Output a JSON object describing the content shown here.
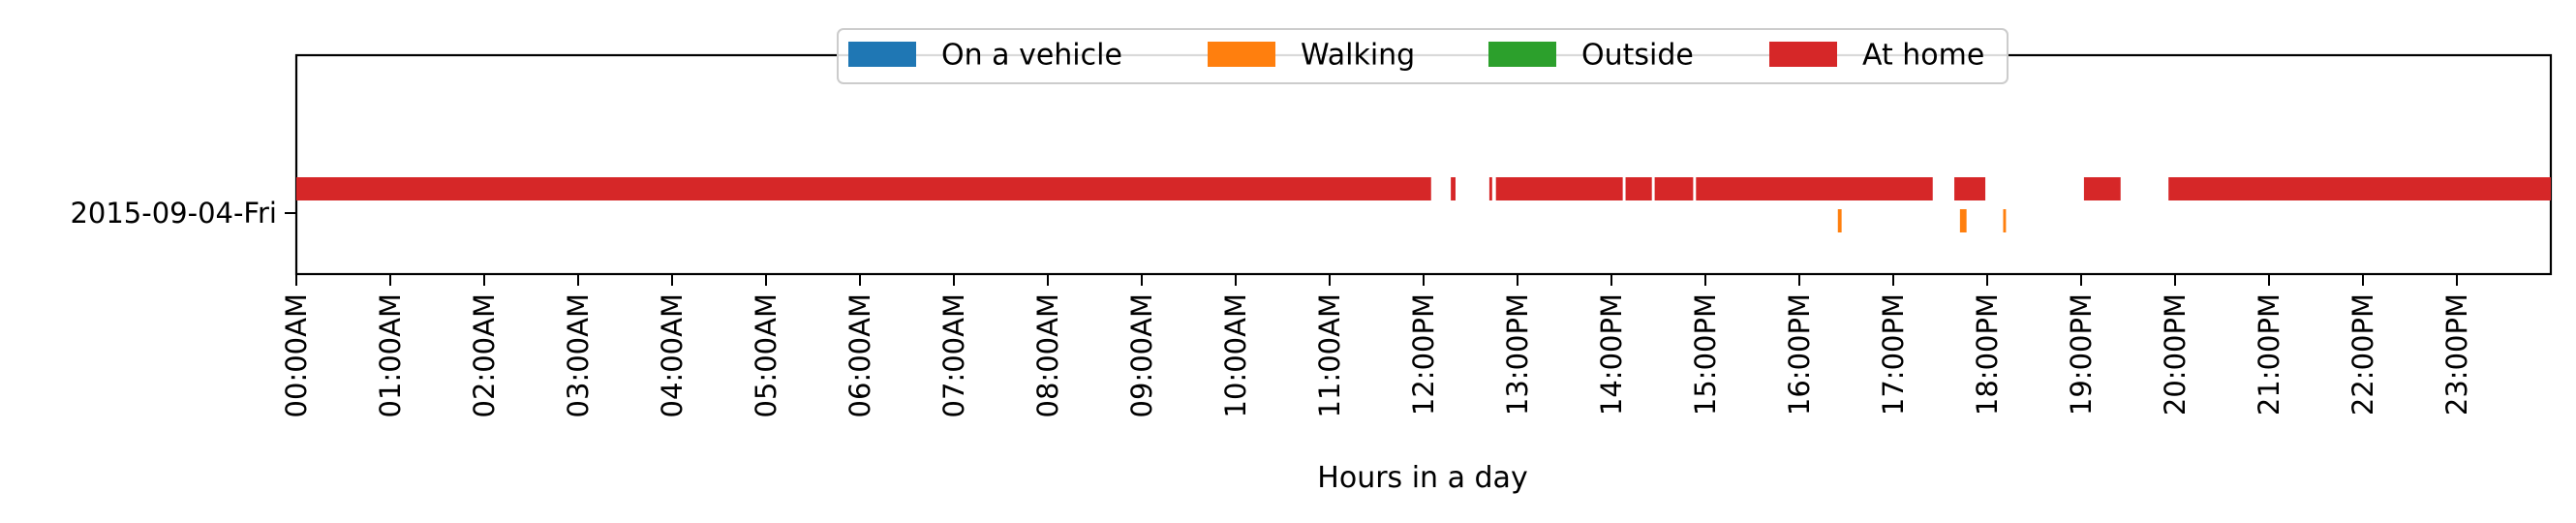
{
  "chart_data": {
    "type": "timeline",
    "title": "",
    "xlabel": "Hours in a day",
    "ylabel": "",
    "xlim": [
      0,
      24
    ],
    "x_ticks": [
      {
        "value": 0,
        "label": "00:00AM"
      },
      {
        "value": 1,
        "label": "01:00AM"
      },
      {
        "value": 2,
        "label": "02:00AM"
      },
      {
        "value": 3,
        "label": "03:00AM"
      },
      {
        "value": 4,
        "label": "04:00AM"
      },
      {
        "value": 5,
        "label": "05:00AM"
      },
      {
        "value": 6,
        "label": "06:00AM"
      },
      {
        "value": 7,
        "label": "07:00AM"
      },
      {
        "value": 8,
        "label": "08:00AM"
      },
      {
        "value": 9,
        "label": "09:00AM"
      },
      {
        "value": 10,
        "label": "10:00AM"
      },
      {
        "value": 11,
        "label": "11:00AM"
      },
      {
        "value": 12,
        "label": "12:00PM"
      },
      {
        "value": 13,
        "label": "13:00PM"
      },
      {
        "value": 14,
        "label": "14:00PM"
      },
      {
        "value": 15,
        "label": "15:00PM"
      },
      {
        "value": 16,
        "label": "16:00PM"
      },
      {
        "value": 17,
        "label": "17:00PM"
      },
      {
        "value": 18,
        "label": "18:00PM"
      },
      {
        "value": 19,
        "label": "19:00PM"
      },
      {
        "value": 20,
        "label": "20:00PM"
      },
      {
        "value": 21,
        "label": "21:00PM"
      },
      {
        "value": 22,
        "label": "22:00PM"
      },
      {
        "value": 23,
        "label": "23:00PM"
      }
    ],
    "y_category": "2015-09-04-Fri",
    "legend_position": "top-center",
    "grid": false,
    "series": [
      {
        "name": "On a vehicle",
        "color": "#1f77b4",
        "intervals": []
      },
      {
        "name": "Walking",
        "color": "#ff7f0e",
        "intervals": [
          [
            16.41,
            16.45
          ],
          [
            17.71,
            17.78
          ],
          [
            18.17,
            18.2
          ]
        ]
      },
      {
        "name": "Outside",
        "color": "#2ca02c",
        "intervals": []
      },
      {
        "name": "At home",
        "color": "#d62728",
        "intervals": [
          [
            0.0,
            12.08
          ],
          [
            12.29,
            12.34
          ],
          [
            12.7,
            12.73
          ],
          [
            12.77,
            14.12
          ],
          [
            14.15,
            14.43
          ],
          [
            14.46,
            14.87
          ],
          [
            14.9,
            17.42
          ],
          [
            17.65,
            17.98
          ],
          [
            19.03,
            19.42
          ],
          [
            19.93,
            24.0
          ]
        ]
      }
    ]
  }
}
